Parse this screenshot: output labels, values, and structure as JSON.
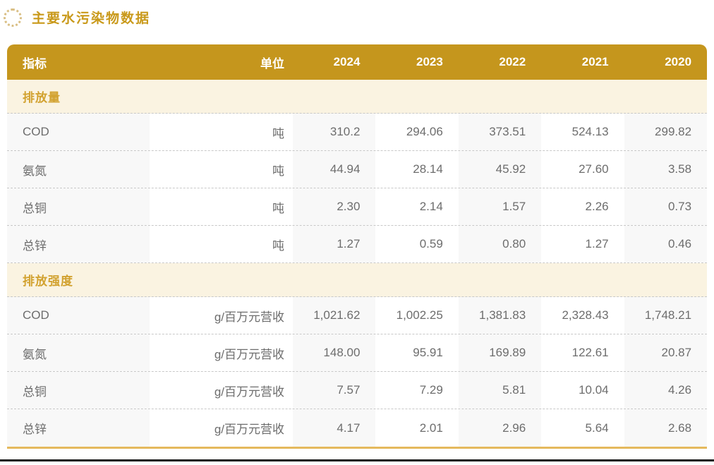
{
  "page": {
    "title": "主要水污染物数据"
  },
  "colors": {
    "header_background": "#c5961d",
    "title_text": "#c9991a",
    "section_background": "#faf3e1",
    "section_text": "#d2a230",
    "data_text": "#6d6d6d",
    "column_stripe": "#f8f8f8",
    "dashed_divider": "#c8c8c8",
    "table_bottom_border": "#e5b95d",
    "page_bottom_edge": "#141414"
  },
  "icons": {
    "title_icon": "dotted-circle-icon"
  },
  "table": {
    "columns": [
      {
        "key": "indicator",
        "label": "指标"
      },
      {
        "key": "unit",
        "label": "单位"
      },
      {
        "key": "y2024",
        "label": "2024"
      },
      {
        "key": "y2023",
        "label": "2023"
      },
      {
        "key": "y2022",
        "label": "2022"
      },
      {
        "key": "y2021",
        "label": "2021"
      },
      {
        "key": "y2020",
        "label": "2020"
      }
    ],
    "sections": [
      {
        "label": "排放量",
        "rows": [
          {
            "indicator": "COD",
            "unit": "吨",
            "values": [
              "310.2",
              "294.06",
              "373.51",
              "524.13",
              "299.82"
            ]
          },
          {
            "indicator": "氨氮",
            "unit": "吨",
            "values": [
              "44.94",
              "28.14",
              "45.92",
              "27.60",
              "3.58"
            ]
          },
          {
            "indicator": "总铜",
            "unit": "吨",
            "values": [
              "2.30",
              "2.14",
              "1.57",
              "2.26",
              "0.73"
            ]
          },
          {
            "indicator": "总锌",
            "unit": "吨",
            "values": [
              "1.27",
              "0.59",
              "0.80",
              "1.27",
              "0.46"
            ]
          }
        ]
      },
      {
        "label": "排放强度",
        "rows": [
          {
            "indicator": "COD",
            "unit": "g/百万元营收",
            "values": [
              "1,021.62",
              "1,002.25",
              "1,381.83",
              "2,328.43",
              "1,748.21"
            ]
          },
          {
            "indicator": "氨氮",
            "unit": "g/百万元营收",
            "values": [
              "148.00",
              "95.91",
              "169.89",
              "122.61",
              "20.87"
            ]
          },
          {
            "indicator": "总铜",
            "unit": "g/百万元营收",
            "values": [
              "7.57",
              "7.29",
              "5.81",
              "10.04",
              "4.26"
            ]
          },
          {
            "indicator": "总锌",
            "unit": "g/百万元营收",
            "values": [
              "4.17",
              "2.01",
              "2.96",
              "5.64",
              "2.68"
            ]
          }
        ]
      }
    ]
  },
  "chart_data": {
    "type": "table",
    "title": "主要水污染物数据",
    "categories": [
      "2024",
      "2023",
      "2022",
      "2021",
      "2020"
    ],
    "series": [
      {
        "name": "排放量 COD (吨)",
        "values": [
          310.2,
          294.06,
          373.51,
          524.13,
          299.82
        ]
      },
      {
        "name": "排放量 氨氮 (吨)",
        "values": [
          44.94,
          28.14,
          45.92,
          27.6,
          3.58
        ]
      },
      {
        "name": "排放量 总铜 (吨)",
        "values": [
          2.3,
          2.14,
          1.57,
          2.26,
          0.73
        ]
      },
      {
        "name": "排放量 总锌 (吨)",
        "values": [
          1.27,
          0.59,
          0.8,
          1.27,
          0.46
        ]
      },
      {
        "name": "排放强度 COD (g/百万元营收)",
        "values": [
          1021.62,
          1002.25,
          1381.83,
          2328.43,
          1748.21
        ]
      },
      {
        "name": "排放强度 氨氮 (g/百万元营收)",
        "values": [
          148.0,
          95.91,
          169.89,
          122.61,
          20.87
        ]
      },
      {
        "name": "排放强度 总铜 (g/百万元营收)",
        "values": [
          7.57,
          7.29,
          5.81,
          10.04,
          4.26
        ]
      },
      {
        "name": "排放强度 总锌 (g/百万元营收)",
        "values": [
          4.17,
          2.01,
          2.96,
          5.64,
          2.68
        ]
      }
    ]
  }
}
